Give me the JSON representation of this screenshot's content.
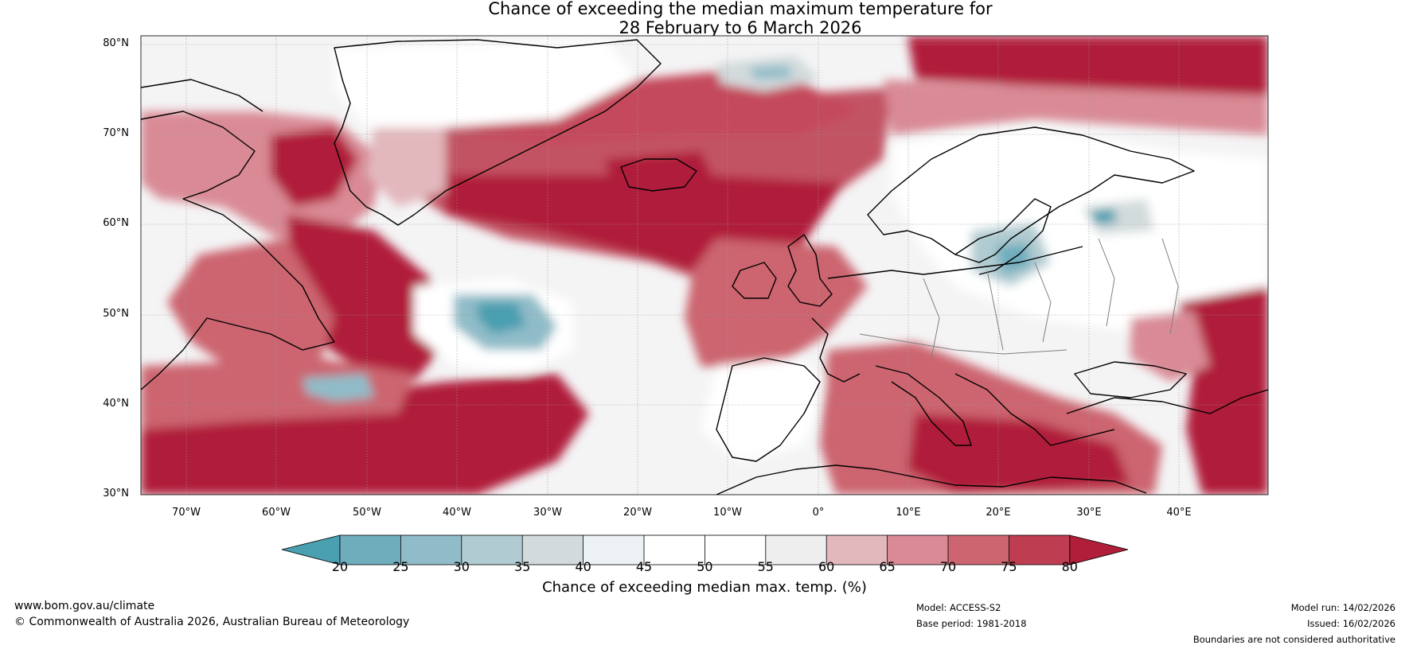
{
  "title_line1": "Chance of exceeding the median maximum temperature for",
  "title_line2": "28 February to 6 March 2026",
  "lat_labels": [
    "80°N",
    "70°N",
    "60°N",
    "50°N",
    "40°N",
    "30°N"
  ],
  "lon_labels": [
    "70°W",
    "60°W",
    "50°W",
    "40°W",
    "30°W",
    "20°W",
    "10°W",
    "0°",
    "10°E",
    "20°E",
    "30°E",
    "40°E"
  ],
  "map_extent": {
    "lon_min": -75,
    "lon_max": 50,
    "lat_min": 30,
    "lat_max": 81
  },
  "colorbar": {
    "title": "Chance of exceeding median max. temp. (%)",
    "ticks": [
      "20",
      "25",
      "30",
      "35",
      "40",
      "45",
      "50",
      "55",
      "60",
      "65",
      "70",
      "75",
      "80"
    ],
    "colors": [
      "#4a9fb0",
      "#6fadbd",
      "#8fbcc8",
      "#b0cbd1",
      "#d2dadc",
      "#ecf1f3",
      "#ffffff",
      "#ffffff",
      "#eeeeee",
      "#e2b8bd",
      "#d98a95",
      "#cc6570",
      "#bf3d50",
      "#b01e3a"
    ]
  },
  "footer": {
    "website": "www.bom.gov.au/climate",
    "copyright": "© Commonwealth of Australia 2026, Australian Bureau of Meteorology",
    "model": "Model: ACCESS-S2",
    "base_period": "Base period: 1981-2018",
    "model_run": "Model run: 14/02/2026",
    "issued": "Issued: 16/02/2026",
    "disclaimer": "Boundaries are not considered authoritative"
  }
}
